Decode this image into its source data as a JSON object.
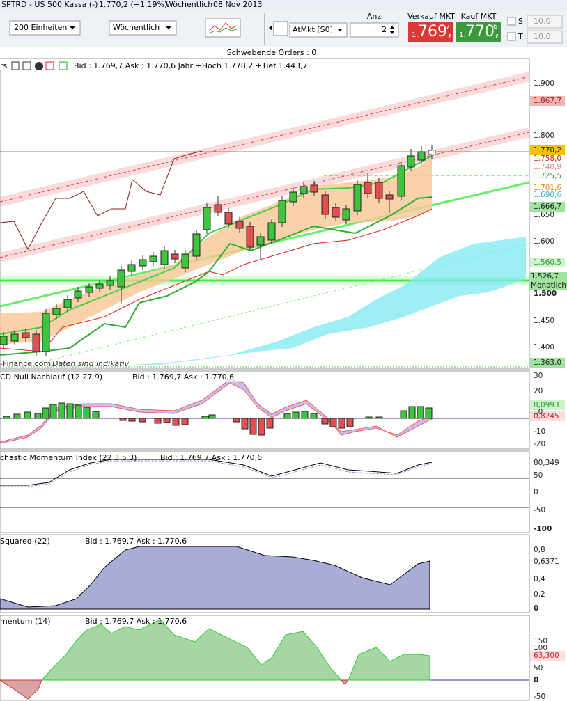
{
  "title_bar": {
    "instrument": "SPTRD - US 500 Kassa (-)",
    "price": "1.770,2 (+1,19%)",
    "period": "Wöchentlich",
    "date": "08 Nov 2013"
  },
  "toolbar": {
    "units": "200 Einheiten",
    "period": "Wöchentlich",
    "order_type": "AtMkt [S0]",
    "qty_label": "Anz",
    "qty": "2",
    "sell": {
      "label": "Verkauf MKT",
      "prefix": "1.",
      "main": "769,",
      "sup": "7"
    },
    "buy": {
      "label": "Kauf MKT",
      "prefix": "1.",
      "main": "770,",
      "sup": "6"
    },
    "check_s": {
      "label": "S",
      "value": "10.0"
    },
    "check_t": {
      "label": "T",
      "value": "10.0"
    }
  },
  "pending_orders": "Schwebende Orders : 0",
  "panels": [
    {
      "title": "rs",
      "info": "Bid : 1.769,7 Ask : 1.770,6 Jahr:+Hoch 1.778,2 +Tief 1.443,7",
      "watermark": "-Finance.com",
      "note": "Daten sind indikativ",
      "axis": [
        "1.900",
        "1.867,7",
        "1.800",
        "1.770,2",
        "1.758,0",
        "1.740,9",
        "1.725,5",
        "1.701,6",
        "1.690,6",
        "1.666,7",
        "1.650",
        "1.600",
        "1.560,5",
        "1.526,7",
        "Monatlich",
        "1.500",
        "1.450",
        "1.400",
        "1.363,0"
      ]
    },
    {
      "title": "CD Null Nachlauf (12 27 9)",
      "info": "Bid : 1.769,7 Ask : 1.770,6",
      "axis": [
        "30",
        "20",
        "8,0993",
        "10",
        "0,8245",
        "-10",
        "-20"
      ]
    },
    {
      "title": "chastic Momentum Index (22 3 5 3)",
      "info": "Bid : 1.769,7 Ask : 1.770,6",
      "axis": [
        "80,349",
        "50",
        "0",
        "-50",
        "-100"
      ]
    },
    {
      "title": "Squared (22)",
      "info": "Bid : 1.769,7 Ask : 1.770,6",
      "axis": [
        "0,8",
        "0,6371",
        "0,4",
        "0,2",
        "0"
      ]
    },
    {
      "title": "mentum (14)",
      "info": "Bid : 1.769,7 Ask : 1.770,6",
      "axis": [
        "150",
        "100",
        "63,300",
        "50",
        "0",
        "-50"
      ]
    }
  ]
}
